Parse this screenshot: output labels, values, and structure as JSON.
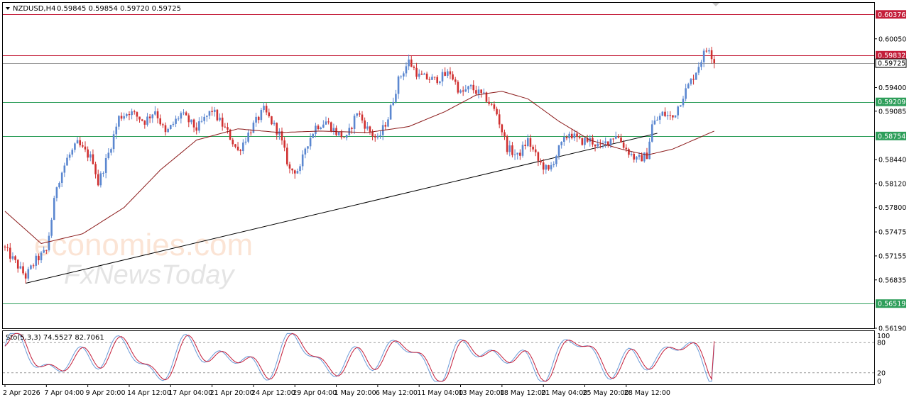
{
  "header": {
    "symbol": "NZDUSD,H4",
    "ohlc": "0.59845 0.59854 0.59720 0.59725"
  },
  "indicator": {
    "label": "Sto(5,3,3) 74.5527 82.7061",
    "levels": [
      "100",
      "80",
      "20",
      "0"
    ]
  },
  "watermark": {
    "line1": "economies.com",
    "line2": "FxNewsToday"
  },
  "chart_data": {
    "type": "candlestick",
    "ylim": [
      0.5619,
      0.6053
    ],
    "y_ticks": [
      "0.60050",
      "0.59400",
      "0.59085",
      "0.58440",
      "0.58120",
      "0.57800",
      "0.57475",
      "0.57155",
      "0.56835",
      "0.56190"
    ],
    "x_tick_labels": [
      "2 Apr 2026",
      "7 Apr 04:00",
      "9 Apr 20:00",
      "14 Apr 12:00",
      "17 Apr 04:00",
      "21 Apr 20:00",
      "24 Apr 12:00",
      "29 Apr 04:00",
      "1 May 20:00",
      "6 May 12:00",
      "11 May 04:00",
      "13 May 20:00",
      "18 May 12:00",
      "21 May 04:00",
      "25 May 20:00",
      "28 May 12:00"
    ],
    "horizontal_levels": [
      {
        "value": 0.60376,
        "label": "0.60376",
        "color": "#c41e3a"
      },
      {
        "value": 0.59832,
        "label": "0.59832",
        "color": "#c41e3a"
      },
      {
        "value": 0.59725,
        "label": "0.59725",
        "color": "#9a9a9a"
      },
      {
        "value": 0.59209,
        "label": "0.59209",
        "color": "#2e9e5a"
      },
      {
        "value": 0.58754,
        "label": "0.58754",
        "color": "#2e9e5a"
      },
      {
        "value": 0.56519,
        "label": "0.56519",
        "color": "#2e9e5a"
      }
    ],
    "trendline": [
      {
        "bar": 8,
        "price": 0.5679
      },
      {
        "bar": 252,
        "price": 0.5879
      }
    ],
    "close_path": [
      [
        0,
        0.5725
      ],
      [
        8,
        0.5688
      ],
      [
        12,
        0.571
      ],
      [
        16,
        0.5722
      ],
      [
        18,
        0.5765
      ],
      [
        20,
        0.581
      ],
      [
        24,
        0.5845
      ],
      [
        28,
        0.5865
      ],
      [
        34,
        0.5843
      ],
      [
        36,
        0.5812
      ],
      [
        40,
        0.5852
      ],
      [
        44,
        0.59
      ],
      [
        48,
        0.5908
      ],
      [
        54,
        0.5895
      ],
      [
        58,
        0.591
      ],
      [
        62,
        0.5878
      ],
      [
        68,
        0.5905
      ],
      [
        74,
        0.5885
      ],
      [
        80,
        0.591
      ],
      [
        86,
        0.588
      ],
      [
        90,
        0.5855
      ],
      [
        96,
        0.589
      ],
      [
        100,
        0.591
      ],
      [
        106,
        0.5878
      ],
      [
        110,
        0.583
      ],
      [
        114,
        0.583
      ],
      [
        116,
        0.586
      ],
      [
        120,
        0.5888
      ],
      [
        124,
        0.5895
      ],
      [
        128,
        0.588
      ],
      [
        132,
        0.5872
      ],
      [
        136,
        0.5908
      ],
      [
        140,
        0.5885
      ],
      [
        144,
        0.587
      ],
      [
        148,
        0.59
      ],
      [
        152,
        0.595
      ],
      [
        156,
        0.5975
      ],
      [
        160,
        0.5955
      ],
      [
        166,
        0.595
      ],
      [
        172,
        0.596
      ],
      [
        176,
        0.5932
      ],
      [
        180,
        0.594
      ],
      [
        186,
        0.5925
      ],
      [
        190,
        0.5905
      ],
      [
        194,
        0.586
      ],
      [
        198,
        0.5848
      ],
      [
        202,
        0.587
      ],
      [
        206,
        0.5842
      ],
      [
        210,
        0.5828
      ],
      [
        214,
        0.5858
      ],
      [
        218,
        0.588
      ],
      [
        222,
        0.5868
      ],
      [
        226,
        0.587
      ],
      [
        230,
        0.586
      ],
      [
        236,
        0.5878
      ],
      [
        240,
        0.5858
      ],
      [
        244,
        0.5843
      ],
      [
        248,
        0.585
      ],
      [
        250,
        0.589
      ],
      [
        254,
        0.5905
      ],
      [
        258,
        0.59
      ],
      [
        262,
        0.593
      ],
      [
        266,
        0.5955
      ],
      [
        270,
        0.5985
      ],
      [
        272,
        0.5994
      ],
      [
        274,
        0.5973
      ]
    ],
    "ma_path": [
      [
        0,
        0.5775
      ],
      [
        14,
        0.5732
      ],
      [
        30,
        0.5745
      ],
      [
        46,
        0.578
      ],
      [
        60,
        0.583
      ],
      [
        74,
        0.587
      ],
      [
        90,
        0.5885
      ],
      [
        106,
        0.588
      ],
      [
        122,
        0.5882
      ],
      [
        140,
        0.588
      ],
      [
        156,
        0.5888
      ],
      [
        170,
        0.5908
      ],
      [
        182,
        0.593
      ],
      [
        192,
        0.5935
      ],
      [
        202,
        0.5925
      ],
      [
        214,
        0.5895
      ],
      [
        226,
        0.587
      ],
      [
        238,
        0.5858
      ],
      [
        248,
        0.585
      ],
      [
        258,
        0.5858
      ],
      [
        266,
        0.587
      ],
      [
        274,
        0.5882
      ]
    ],
    "stochastic": {
      "k": 74.5527,
      "d": 82.7061,
      "ylim": [
        0,
        100
      ],
      "levels": [
        80,
        20
      ]
    }
  }
}
